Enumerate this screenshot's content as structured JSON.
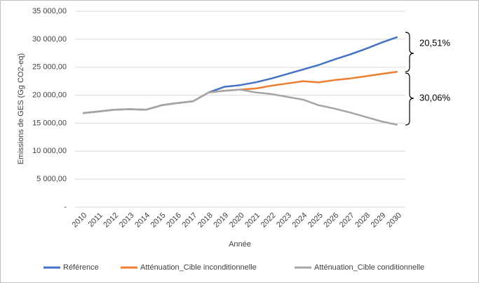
{
  "chart_data": {
    "type": "line",
    "y_label": "Emissions de GES (Gg CO2-eq)",
    "x_label": "Année",
    "categories": [
      "2010",
      "2011",
      "2012",
      "2013",
      "2014",
      "2015",
      "2016",
      "2017",
      "2018",
      "2019",
      "2020",
      "2021",
      "2022",
      "2023",
      "2024",
      "2025",
      "2026",
      "2027",
      "2028",
      "2029",
      "2030"
    ],
    "series": [
      {
        "name": "Référence",
        "color": "#4472c4",
        "values": [
          16800,
          17100,
          17400,
          17500,
          17400,
          18200,
          18600,
          18900,
          20500,
          21500,
          21800,
          22300,
          23000,
          23800,
          24600,
          25400,
          26400,
          27300,
          28300,
          29400,
          30400
        ]
      },
      {
        "name": "Atténuation_Cible inconditionnelle",
        "color": "#ed7d31",
        "values": [
          16800,
          17100,
          17400,
          17500,
          17400,
          18200,
          18600,
          18900,
          20500,
          20800,
          21000,
          21200,
          21700,
          22100,
          22500,
          22300,
          22700,
          23000,
          23400,
          23800,
          24200
        ]
      },
      {
        "name": "Atténuation_Cible conditionnelle",
        "color": "#a5a5a5",
        "values": [
          16800,
          17100,
          17400,
          17500,
          17400,
          18200,
          18600,
          18900,
          20500,
          20800,
          21000,
          20500,
          20200,
          19700,
          19200,
          18200,
          17600,
          16900,
          16100,
          15300,
          14700
        ]
      }
    ],
    "ylim": [
      0,
      35000
    ],
    "yticks": [
      {
        "value": 0,
        "label": "-"
      },
      {
        "value": 5000,
        "label": "5 000,00"
      },
      {
        "value": 10000,
        "label": "10 000,00"
      },
      {
        "value": 15000,
        "label": "15 000,00"
      },
      {
        "value": 20000,
        "label": "20 000,00"
      },
      {
        "value": 25000,
        "label": "25 000,00"
      },
      {
        "value": 30000,
        "label": "30 000,00"
      },
      {
        "value": 35000,
        "label": "35 000,00"
      }
    ],
    "grid": true,
    "legend": "bottom",
    "annotations": [
      "20,51%",
      "30,06%"
    ]
  }
}
